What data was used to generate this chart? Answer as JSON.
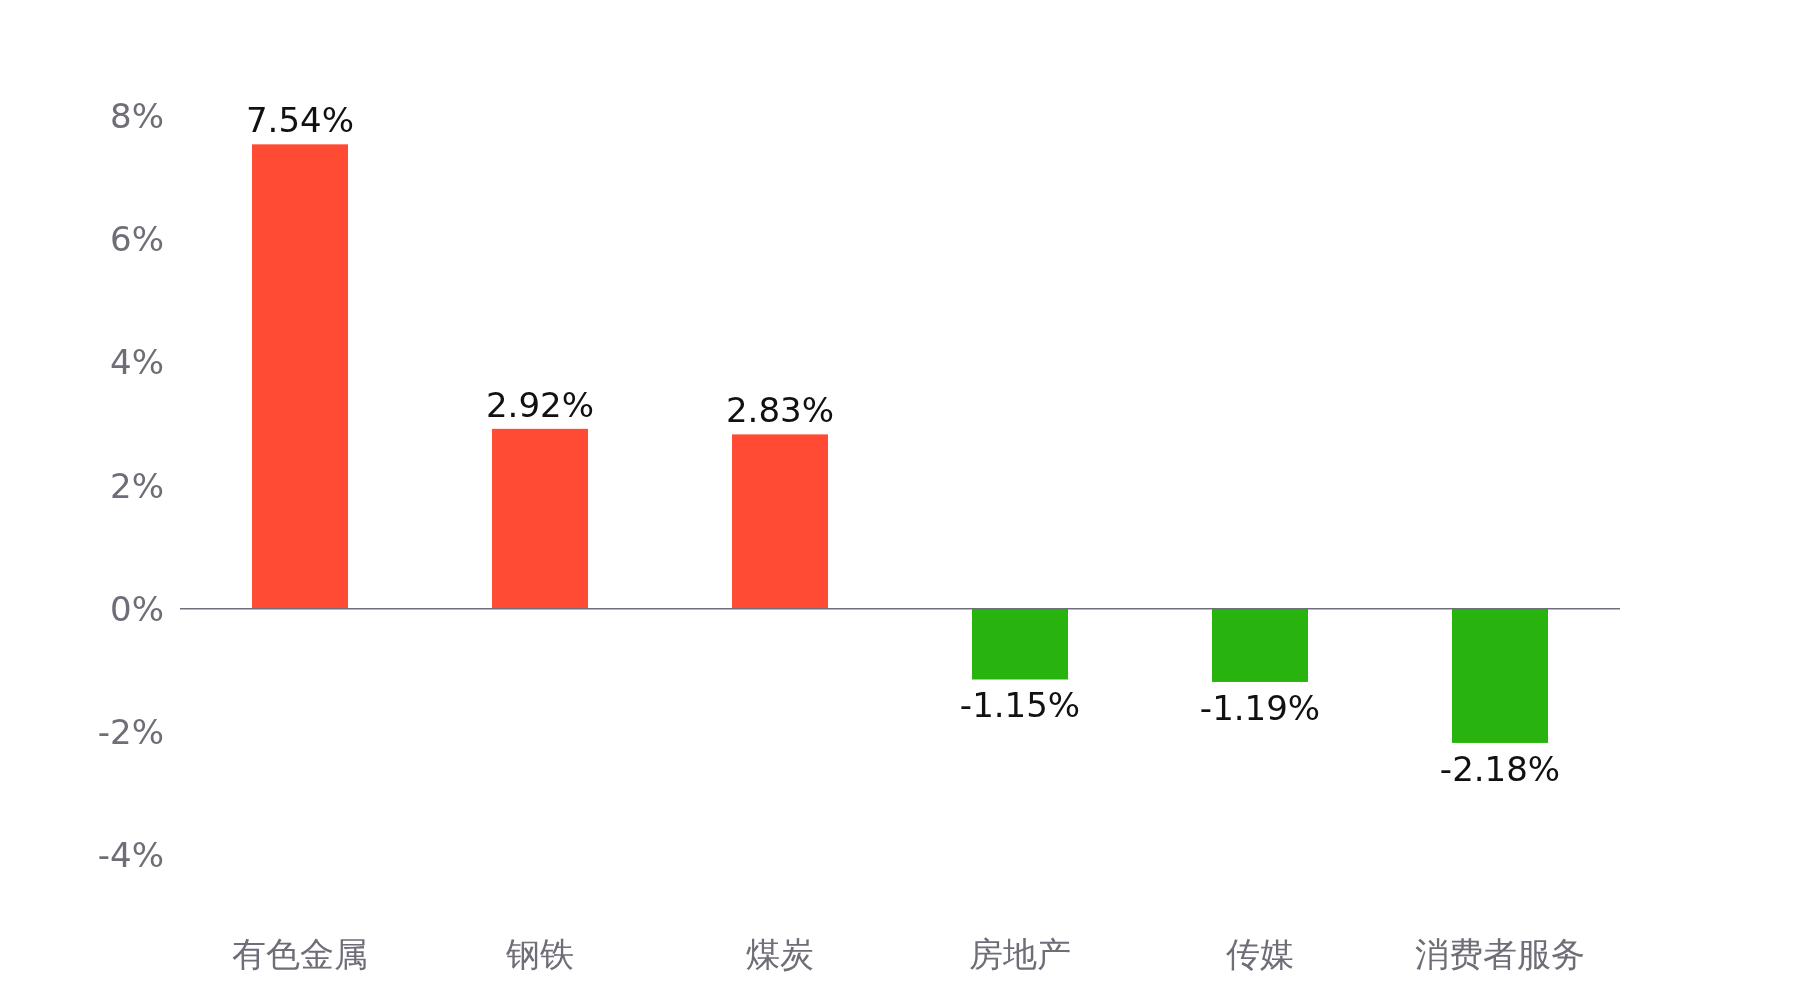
{
  "chart_data": {
    "type": "bar",
    "categories": [
      "有色金属",
      "钢铁",
      "煤炭",
      "房地产",
      "传媒",
      "消费者服务"
    ],
    "values": [
      7.54,
      2.92,
      2.83,
      -1.15,
      -1.19,
      -2.18
    ],
    "colors": [
      "#ff4b33",
      "#ff4b33",
      "#ff4b33",
      "#28b30e",
      "#28b30e",
      "#28b30e"
    ],
    "value_labels": [
      "7.54%",
      "2.92%",
      "2.83%",
      "-1.15%",
      "-1.19%",
      "-2.18%"
    ],
    "ylim": [
      -4,
      8
    ],
    "yticks": [
      {
        "value": -4,
        "label": "-4%"
      },
      {
        "value": -2,
        "label": "-2%"
      },
      {
        "value": 0,
        "label": "0%"
      },
      {
        "value": 2,
        "label": "2%"
      },
      {
        "value": 4,
        "label": "4%"
      },
      {
        "value": 6,
        "label": "6%"
      },
      {
        "value": 8,
        "label": "8%"
      }
    ]
  }
}
